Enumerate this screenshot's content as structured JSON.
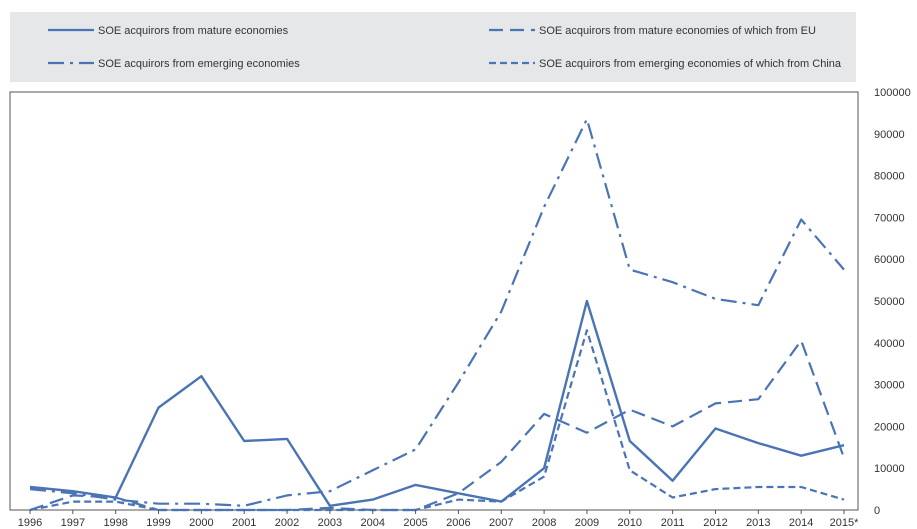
{
  "chart_data": {
    "type": "line",
    "title": "",
    "xlabel": "",
    "ylabel": "",
    "x": [
      "1996",
      "1997",
      "1998",
      "1999",
      "2000",
      "2001",
      "2002",
      "2003",
      "2004",
      "2005",
      "2006",
      "2007",
      "2008",
      "2009",
      "2010",
      "2011",
      "2012",
      "2013",
      "2014",
      "2015*"
    ],
    "ylim": [
      0,
      100000
    ],
    "yticks": [
      "0",
      "10000",
      "20000",
      "30000",
      "40000",
      "50000",
      "60000",
      "70000",
      "80000",
      "90000",
      "100000"
    ],
    "y_axis_side": "right",
    "grid": false,
    "legend_position": "top",
    "line_color": "#4a74b4",
    "series": [
      {
        "name": "SOE acquirors from mature economies",
        "style": "solid",
        "values": [
          5500,
          4500,
          3000,
          24500,
          32000,
          16500,
          17000,
          1000,
          2500,
          6000,
          4000,
          2000,
          10000,
          50000,
          16500,
          7000,
          19500,
          16000,
          13000,
          15500
        ]
      },
      {
        "name": "SOE acquirors from mature economies of which from EU",
        "style": "dash",
        "values": [
          0,
          3500,
          3000,
          0,
          0,
          0,
          0,
          500,
          0,
          0,
          4000,
          11500,
          23000,
          18500,
          24000,
          20000,
          25500,
          26500,
          40500,
          12500
        ]
      },
      {
        "name": "SOE acquirors from emerging economies",
        "style": "dashdot",
        "values": [
          5000,
          4000,
          2500,
          1500,
          1500,
          1000,
          3500,
          4500,
          9500,
          14500,
          30500,
          47500,
          72500,
          93500,
          57500,
          54500,
          50500,
          49000,
          69500,
          57500
        ]
      },
      {
        "name": "SOE acquirors from emerging economies of which from China",
        "style": "shortdash",
        "values": [
          0,
          2000,
          2000,
          0,
          0,
          0,
          0,
          0,
          0,
          0,
          2500,
          2000,
          8000,
          43000,
          9500,
          3000,
          5000,
          5500,
          5500,
          2500
        ]
      }
    ]
  }
}
